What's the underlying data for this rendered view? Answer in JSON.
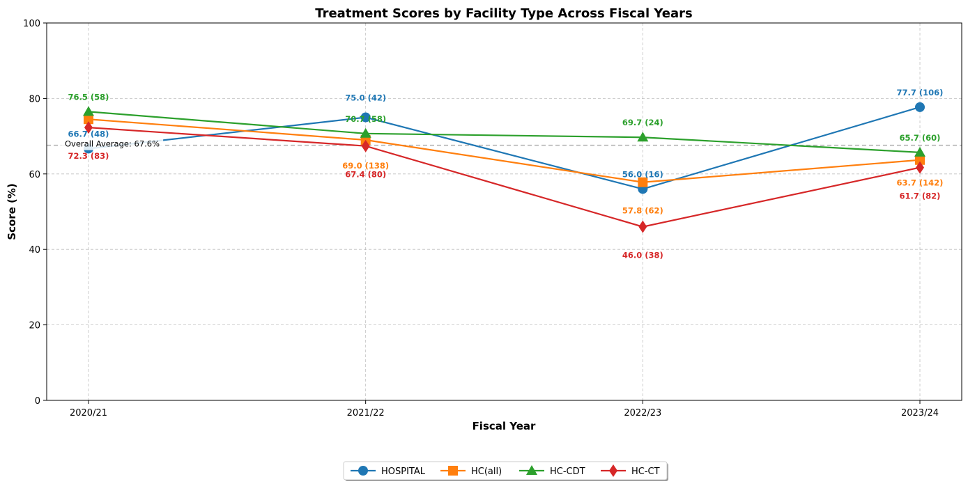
{
  "chart_data": {
    "type": "line",
    "title": "Treatment Scores by Facility Type Across Fiscal Years",
    "xlabel": "Fiscal Year",
    "ylabel": "Score (%)",
    "ylim": [
      0,
      100
    ],
    "yticks": [
      0,
      20,
      40,
      60,
      80,
      100
    ],
    "categories": [
      "2020/21",
      "2021/22",
      "2022/23",
      "2023/24"
    ],
    "grid": true,
    "legend_position": "bottom-center",
    "reference_line": {
      "value": 67.6,
      "label": "Overall Average: 67.6%",
      "color": "#b0b0b0"
    },
    "series": [
      {
        "name": "HOSPITAL",
        "color": "#1f77b4",
        "marker": "circle",
        "values": [
          66.7,
          75.0,
          56.0,
          77.7
        ],
        "labels": [
          "66.7 (48)",
          "75.0 (42)",
          "56.0 (16)",
          "77.7 (106)"
        ]
      },
      {
        "name": "HC(all)",
        "color": "#ff7f0e",
        "marker": "square",
        "values": [
          74.5,
          69.0,
          57.8,
          63.7
        ],
        "labels": [
          "",
          "69.0 (138)",
          "57.8 (62)",
          "63.7 (142)"
        ]
      },
      {
        "name": "HC-CDT",
        "color": "#2ca02c",
        "marker": "triangle",
        "values": [
          76.5,
          70.7,
          69.7,
          65.7
        ],
        "labels": [
          "76.5 (58)",
          "70.7 (58)",
          "69.7 (24)",
          "65.7 (60)"
        ]
      },
      {
        "name": "HC-CT",
        "color": "#d62728",
        "marker": "diamond",
        "values": [
          72.3,
          67.4,
          46.0,
          61.7
        ],
        "labels": [
          "72.3 (83)",
          "67.4 (80)",
          "46.0 (38)",
          "61.7 (82)"
        ]
      }
    ]
  }
}
